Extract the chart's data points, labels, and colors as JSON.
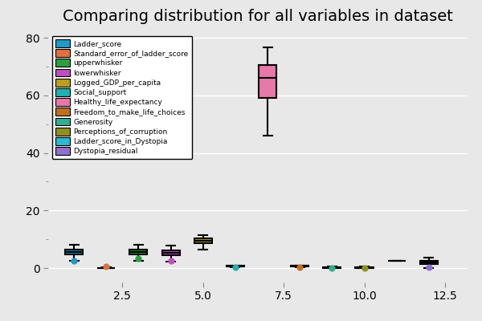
{
  "title": "Comparing distribution for all variables in dataset",
  "variables": [
    "Ladder_score",
    "Standard_error_of_ladder_score",
    "upperwhisker",
    "lowerwhisker",
    "Logged_GDP_per_capita",
    "Social_support",
    "Healthy_life_expectancy",
    "Freedom_to_make_life_choices",
    "Generosity",
    "Perceptions_of_corruption",
    "Ladder_score_in_Dystopia",
    "Dystopia_residual"
  ],
  "colors": [
    "#1f9ac9",
    "#e07040",
    "#2ca040",
    "#c050c0",
    "#b8a020",
    "#20b0b0",
    "#e878a8",
    "#c07020",
    "#30b090",
    "#909020",
    "#30b8d0",
    "#9070d0"
  ],
  "positions": [
    1,
    2,
    3,
    4,
    5,
    6,
    7,
    8,
    9,
    10,
    11,
    12
  ],
  "box_stats": [
    {
      "med": 5.53,
      "q1": 4.65,
      "q3": 6.3,
      "whislo": 2.4,
      "whishi": 8.02,
      "fliers": [
        2.4
      ]
    },
    {
      "med": 0.06,
      "q1": 0.045,
      "q3": 0.08,
      "whislo": 0.025,
      "whishi": 0.16,
      "fliers": [
        0.55
      ]
    },
    {
      "med": 5.65,
      "q1": 4.78,
      "q3": 6.45,
      "whislo": 2.55,
      "whishi": 8.14,
      "fliers": [
        3.5
      ]
    },
    {
      "med": 5.42,
      "q1": 4.5,
      "q3": 6.13,
      "whislo": 2.28,
      "whishi": 7.87,
      "fliers": [
        2.5
      ]
    },
    {
      "med": 9.5,
      "q1": 8.6,
      "q3": 10.35,
      "whislo": 6.5,
      "whishi": 11.48,
      "fliers": []
    },
    {
      "med": 0.6,
      "q1": 0.5,
      "q3": 0.74,
      "whislo": 0.29,
      "whishi": 0.98,
      "fliers": [
        0.29
      ]
    },
    {
      "med": 66.0,
      "q1": 59.0,
      "q3": 70.5,
      "whislo": 46.0,
      "whishi": 76.8,
      "fliers": []
    },
    {
      "med": 0.72,
      "q1": 0.6,
      "q3": 0.82,
      "whislo": 0.38,
      "whishi": 0.97,
      "fliers": [
        0.38
      ]
    },
    {
      "med": 0.18,
      "q1": 0.08,
      "q3": 0.28,
      "whislo": -0.02,
      "whishi": 0.59,
      "fliers": [
        -0.02
      ]
    },
    {
      "med": 0.12,
      "q1": 0.07,
      "q3": 0.2,
      "whislo": 0.02,
      "whishi": 0.52,
      "fliers": [
        0.02
      ]
    },
    {
      "med": 2.43,
      "q1": 2.43,
      "q3": 2.43,
      "whislo": 2.43,
      "whishi": 2.43,
      "fliers": []
    },
    {
      "med": 2.1,
      "q1": 1.5,
      "q3": 2.65,
      "whislo": 0.0,
      "whishi": 3.78,
      "fliers": [
        0.42
      ]
    }
  ],
  "ylim": [
    -5,
    82
  ],
  "yticks": [
    0,
    20,
    40,
    60,
    80
  ],
  "xlim": [
    0.2,
    13.2
  ],
  "xticks": [
    2.5,
    5.0,
    7.5,
    10.0,
    12.5
  ],
  "background_color": "#e8e8e8",
  "grid_color": "white",
  "title_fontsize": 14,
  "box_width": 0.55,
  "flier_size": 35
}
